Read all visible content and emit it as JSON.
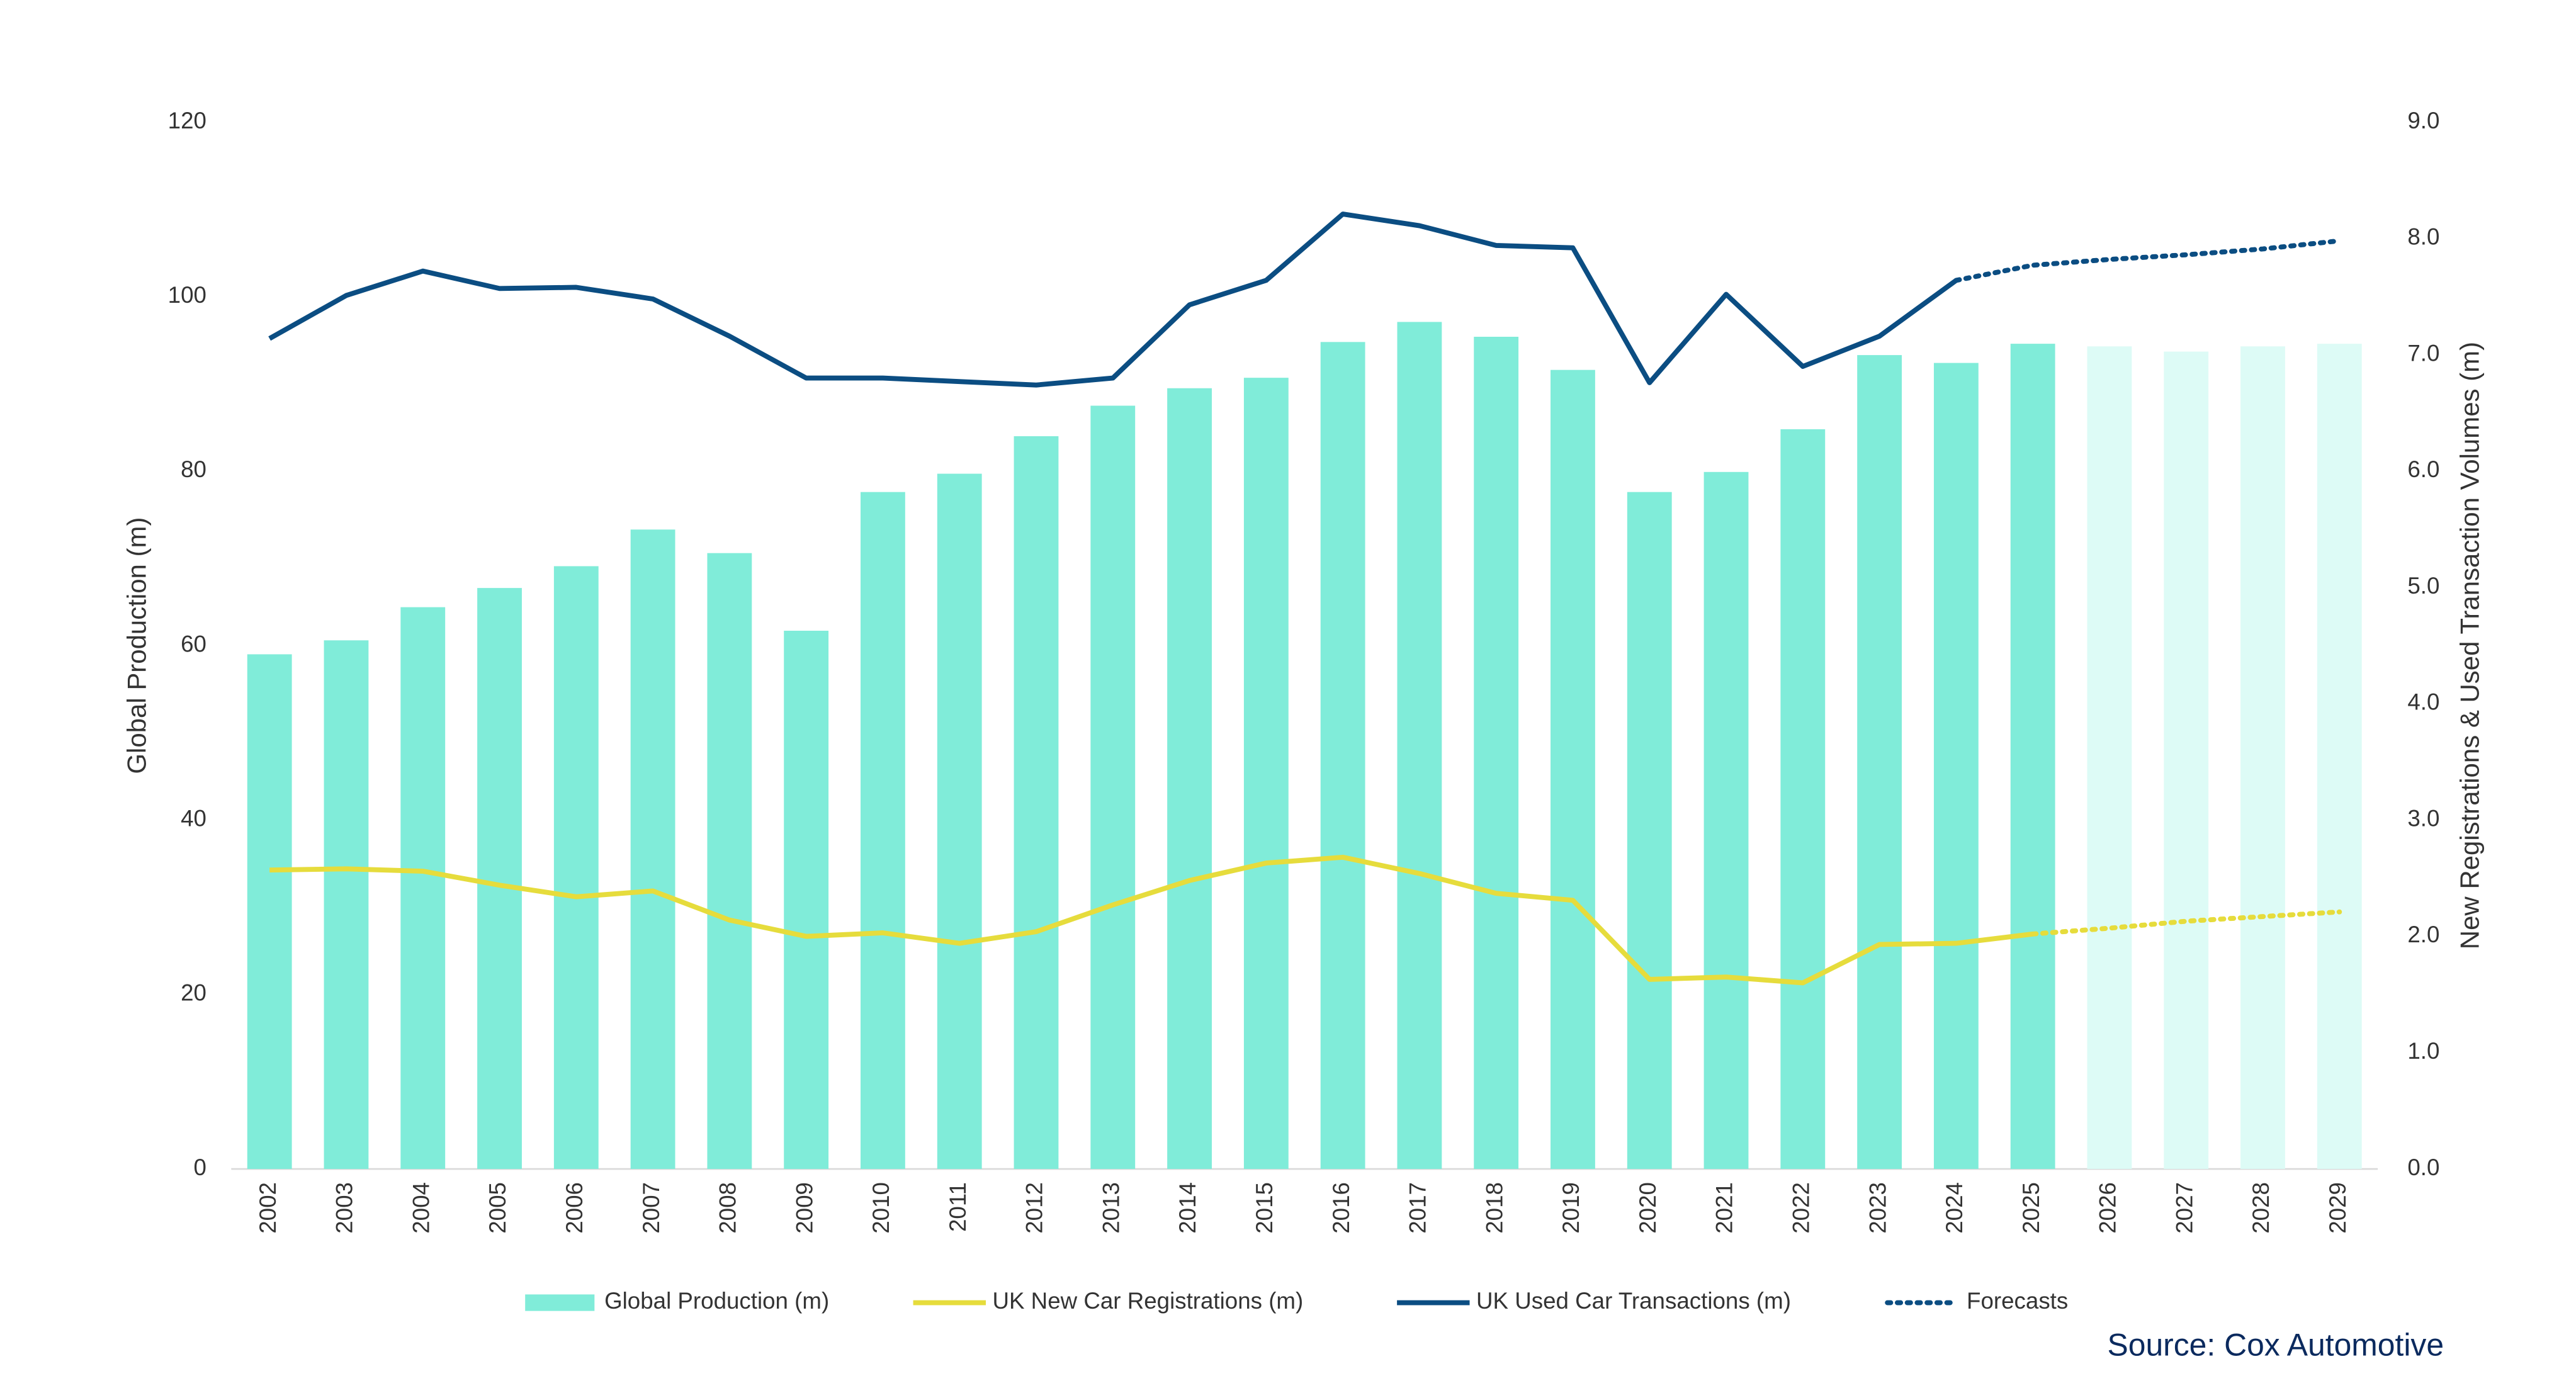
{
  "chart_data": {
    "type": "bar-line",
    "categories": [
      "2002",
      "2003",
      "2004",
      "2005",
      "2006",
      "2007",
      "2008",
      "2009",
      "2010",
      "2011",
      "2012",
      "2013",
      "2014",
      "2015",
      "2016",
      "2017",
      "2018",
      "2019",
      "2020",
      "2021",
      "2022",
      "2023",
      "2024",
      "2025",
      "2026",
      "2027",
      "2028",
      "2029"
    ],
    "y_label": "Global Production (m)",
    "y2_label": "New Registrations & Used Transaction Volumes (m)",
    "ylim": [
      0,
      120
    ],
    "yticks": [
      0,
      20,
      40,
      60,
      80,
      100,
      120
    ],
    "y2lim": [
      0,
      9
    ],
    "y2ticks": [
      {
        "value": 0,
        "label": "0.0"
      },
      {
        "value": 1,
        "label": "1.0"
      },
      {
        "value": 2,
        "label": "2.0"
      },
      {
        "value": 3,
        "label": "3.0"
      },
      {
        "value": 4,
        "label": "4.0"
      },
      {
        "value": 5,
        "label": "5.0"
      },
      {
        "value": 6,
        "label": "6.0"
      },
      {
        "value": 7,
        "label": "7.0"
      },
      {
        "value": 8,
        "label": "8.0"
      },
      {
        "value": 9,
        "label": "9.0"
      }
    ],
    "series": [
      {
        "name": "Global Production (m)",
        "type": "bar",
        "color": "#80ecd9",
        "forecast_color": "#ddfbf6",
        "values": [
          59,
          60.6,
          64.4,
          66.6,
          69.1,
          73.3,
          70.6,
          61.7,
          77.6,
          79.7,
          84.0,
          87.5,
          89.5,
          90.7,
          94.8,
          97.1,
          95.4,
          91.6,
          77.6,
          79.9,
          84.8,
          93.3,
          92.4,
          94.6,
          null,
          null,
          null,
          null
        ],
        "forecast_values": [
          null,
          null,
          null,
          null,
          null,
          null,
          null,
          null,
          null,
          null,
          null,
          null,
          null,
          null,
          null,
          null,
          null,
          null,
          null,
          null,
          null,
          null,
          null,
          null,
          94.3,
          93.7,
          94.3,
          94.6
        ]
      },
      {
        "name": "UK New Car Registrations (m)",
        "type": "line",
        "axis": "y2",
        "color": "#e6dc3c",
        "values": [
          2.57,
          2.58,
          2.56,
          2.44,
          2.34,
          2.39,
          2.14,
          2.0,
          2.03,
          1.94,
          2.04,
          2.27,
          2.48,
          2.63,
          2.68,
          2.54,
          2.37,
          2.31,
          1.63,
          1.65,
          1.6,
          1.93,
          1.94,
          2.02,
          null,
          null,
          null,
          null
        ],
        "forecast_values": [
          null,
          null,
          null,
          null,
          null,
          null,
          null,
          null,
          null,
          null,
          null,
          null,
          null,
          null,
          null,
          null,
          null,
          null,
          null,
          null,
          null,
          null,
          null,
          2.02,
          2.07,
          2.13,
          2.17,
          2.21
        ]
      },
      {
        "name": "UK Used Car Transactions (m)",
        "type": "line",
        "axis": "y2",
        "color": "#0b4d82",
        "values": [
          7.14,
          7.51,
          7.72,
          7.57,
          7.58,
          7.48,
          7.16,
          6.8,
          6.8,
          6.77,
          6.74,
          6.8,
          7.43,
          7.64,
          8.21,
          8.11,
          7.94,
          7.92,
          6.76,
          7.52,
          6.9,
          7.16,
          7.64,
          null,
          null,
          null,
          null,
          null
        ],
        "forecast_values": [
          null,
          null,
          null,
          null,
          null,
          null,
          null,
          null,
          null,
          null,
          null,
          null,
          null,
          null,
          null,
          null,
          null,
          null,
          null,
          null,
          null,
          null,
          7.64,
          7.77,
          7.82,
          7.86,
          7.91,
          7.98
        ]
      }
    ],
    "forecast_legend": {
      "name": "Forecasts",
      "color": "#0b4d82"
    },
    "source": "Source: Cox Automotive"
  }
}
